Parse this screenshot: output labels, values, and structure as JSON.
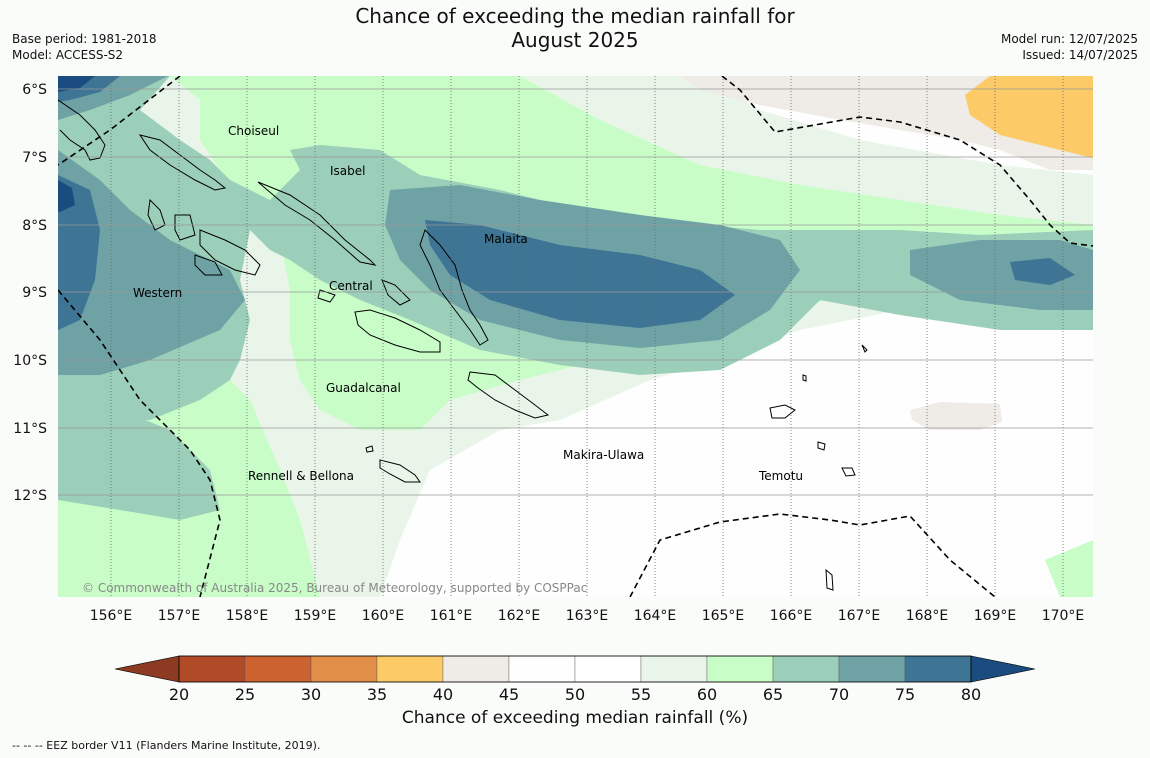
{
  "header": {
    "title_line1": "Chance of exceeding the median rainfall for",
    "title_line2": "August 2025",
    "base_period": "Base period: 1981-2018",
    "model": "Model: ACCESS-S2",
    "model_run": "Model run: 12/07/2025",
    "issued": "Issued: 14/07/2025"
  },
  "map": {
    "lat_labels": [
      "6°S",
      "7°S",
      "8°S",
      "9°S",
      "10°S",
      "11°S",
      "12°S"
    ],
    "lon_labels": [
      "156°E",
      "157°E",
      "158°E",
      "159°E",
      "160°E",
      "161°E",
      "162°E",
      "163°E",
      "164°E",
      "165°E",
      "166°E",
      "167°E",
      "168°E",
      "169°E",
      "170°E"
    ],
    "places": [
      "Choiseul",
      "Isabel",
      "Malaita",
      "Western",
      "Central",
      "Guadalcanal",
      "Makira-Ulawa",
      "Rennell & Bellona",
      "Temotu"
    ],
    "copyright": "© Commonwealth of Australia 2025, Bureau of Meteorology, supported by COSPPac"
  },
  "colorbar": {
    "ticks": [
      "20",
      "25",
      "30",
      "35",
      "40",
      "45",
      "50",
      "55",
      "60",
      "65",
      "70",
      "75",
      "80"
    ],
    "colors": [
      "#8c3a22",
      "#b14a27",
      "#cc6230",
      "#e08e48",
      "#fccb67",
      "#efebe7",
      "#fdfefd",
      "#ffffff",
      "#eaf5ea",
      "#c8fdc8",
      "#9ccfb9",
      "#6fa2a5",
      "#3e7494",
      "#1b4c80"
    ],
    "label": "Chance of exceeding median rainfall (%)"
  },
  "footer": "--  --  -- EEZ border V11 (Flanders Marine Institute, 2019)."
}
